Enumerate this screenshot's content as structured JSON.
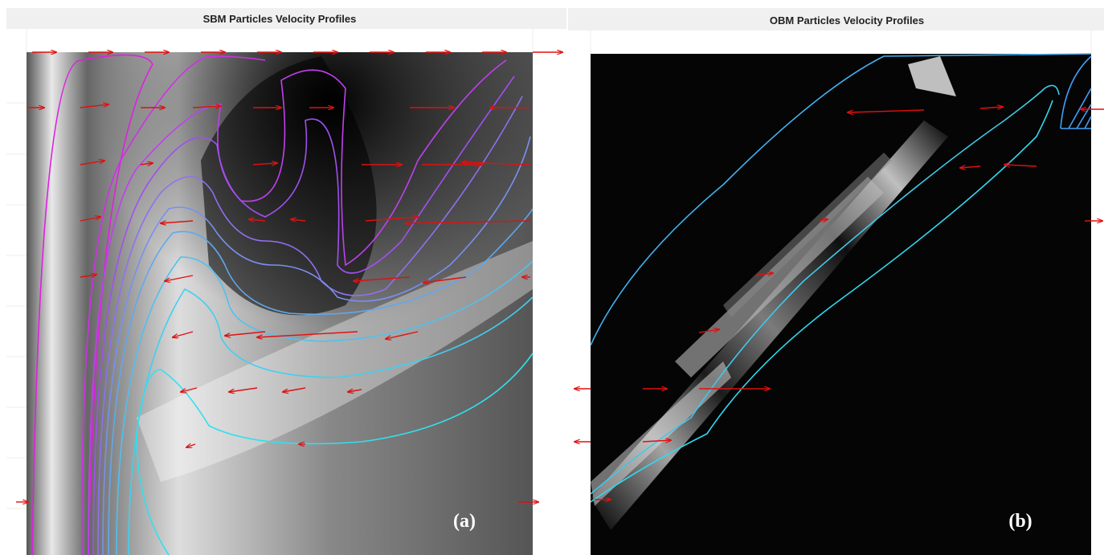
{
  "panels": [
    {
      "title": "SBM Particles Velocity Profiles",
      "label": "(a)"
    },
    {
      "title": "OBM Particles Velocity Profiles",
      "label": "(b)"
    }
  ]
}
